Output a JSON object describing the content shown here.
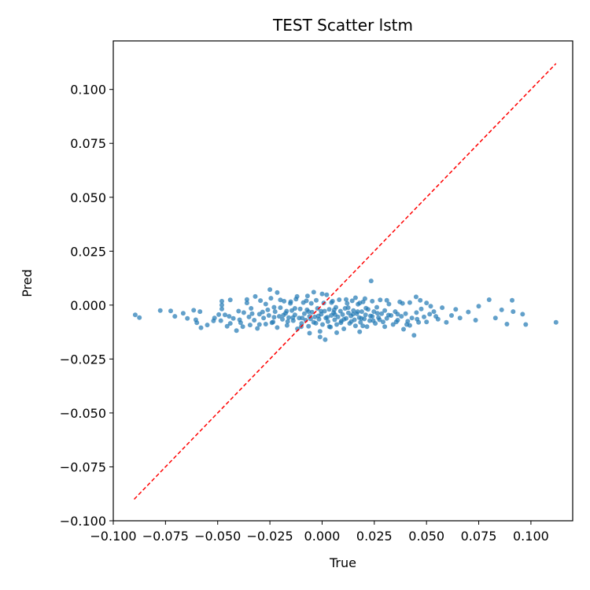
{
  "chart_data": {
    "type": "scatter",
    "title": "TEST Scatter lstm",
    "xlabel": "True",
    "ylabel": "Pred",
    "xlim": [
      -0.1,
      0.12
    ],
    "ylim": [
      -0.1,
      0.1225
    ],
    "xticks": [
      -0.1,
      -0.075,
      -0.05,
      -0.025,
      0.0,
      0.025,
      0.05,
      0.075,
      0.1
    ],
    "xtick_labels": [
      "−0.100",
      "−0.075",
      "−0.050",
      "−0.025",
      "0.000",
      "0.025",
      "0.050",
      "0.075",
      "0.100"
    ],
    "yticks": [
      -0.1,
      -0.075,
      -0.05,
      -0.025,
      0.0,
      0.025,
      0.05,
      0.075,
      0.1
    ],
    "ytick_labels": [
      "−0.100",
      "−0.075",
      "−0.050",
      "−0.025",
      "0.000",
      "0.025",
      "0.050",
      "0.075",
      "0.100"
    ],
    "grid": false,
    "legend": "none",
    "colors": {
      "points": "#1f77b4",
      "reference_line": "#ff0000"
    },
    "reference_line": {
      "x": [
        -0.09,
        0.112
      ],
      "y": [
        -0.09,
        0.112
      ],
      "style": "dashed"
    },
    "series": [
      {
        "points": [
          [
            -0.0895,
            -0.0045
          ],
          [
            -0.0875,
            -0.0058
          ],
          [
            -0.0775,
            -0.0025
          ],
          [
            -0.0725,
            -0.0027
          ],
          [
            -0.0705,
            -0.0052
          ],
          [
            -0.0665,
            -0.0038
          ],
          [
            -0.0645,
            -0.0062
          ],
          [
            -0.0615,
            -0.0024
          ],
          [
            -0.06,
            -0.0082
          ],
          [
            -0.0585,
            -0.003
          ],
          [
            -0.055,
            -0.0092
          ],
          [
            -0.052,
            -0.0073
          ],
          [
            -0.0495,
            -0.0044
          ],
          [
            -0.0485,
            -0.0072
          ],
          [
            -0.048,
            -0.0018
          ],
          [
            -0.048,
            0.0018
          ],
          [
            -0.0455,
            -0.0098
          ],
          [
            -0.0445,
            -0.0052
          ],
          [
            -0.044,
            0.0024
          ],
          [
            -0.0425,
            -0.0062
          ],
          [
            -0.041,
            -0.0118
          ],
          [
            -0.04,
            -0.0028
          ],
          [
            -0.039,
            -0.0082
          ],
          [
            -0.0375,
            -0.0035
          ],
          [
            -0.036,
            0.0026
          ],
          [
            -0.035,
            -0.0055
          ],
          [
            -0.0345,
            -0.0092
          ],
          [
            -0.034,
            -0.0015
          ],
          [
            -0.0325,
            -0.007
          ],
          [
            -0.031,
            -0.0108
          ],
          [
            -0.03,
            -0.0042
          ],
          [
            -0.0295,
            0.0021
          ],
          [
            -0.028,
            -0.006
          ],
          [
            -0.027,
            -0.0088
          ],
          [
            -0.026,
            -0.0022
          ],
          [
            -0.0255,
            -0.0048
          ],
          [
            -0.0245,
            0.0032
          ],
          [
            -0.0235,
            -0.0078
          ],
          [
            -0.0225,
            -0.003
          ],
          [
            -0.0215,
            -0.0104
          ],
          [
            -0.0205,
            -0.0052
          ],
          [
            -0.02,
            -0.0012
          ],
          [
            -0.019,
            -0.0066
          ],
          [
            -0.0182,
            0.0018
          ],
          [
            -0.0175,
            -0.0038
          ],
          [
            -0.0168,
            -0.0094
          ],
          [
            -0.016,
            -0.0058
          ],
          [
            -0.0152,
            0.0008
          ],
          [
            -0.0145,
            -0.0025
          ],
          [
            -0.0138,
            -0.0072
          ],
          [
            -0.013,
            -0.0045
          ],
          [
            -0.0125,
            0.0028
          ],
          [
            -0.0118,
            -0.011
          ],
          [
            -0.011,
            -0.006
          ],
          [
            -0.0105,
            -0.0018
          ],
          [
            -0.0098,
            -0.0085
          ],
          [
            -0.009,
            0.0012
          ],
          [
            -0.0085,
            -0.004
          ],
          [
            -0.0078,
            -0.007
          ],
          [
            -0.0072,
            -0.0022
          ],
          [
            -0.0065,
            -0.0098
          ],
          [
            -0.006,
            -0.0052
          ],
          [
            -0.0052,
            0.0008
          ],
          [
            -0.0048,
            -0.0033
          ],
          [
            -0.004,
            -0.008
          ],
          [
            -0.0035,
            -0.0055
          ],
          [
            -0.0028,
            0.0022
          ],
          [
            -0.0022,
            -0.0015
          ],
          [
            -0.0015,
            -0.0065
          ],
          [
            -0.001,
            -0.0122
          ],
          [
            -0.0004,
            -0.0042
          ],
          [
            0.0002,
            -0.009
          ],
          [
            0.0008,
            0.001
          ],
          [
            0.0012,
            -0.0028
          ],
          [
            0.0018,
            -0.006
          ],
          [
            0.0022,
            0.0048
          ],
          [
            0.0028,
            -0.0076
          ],
          [
            0.0034,
            -0.002
          ],
          [
            0.004,
            -0.0102
          ],
          [
            0.0044,
            -0.0048
          ],
          [
            0.005,
            0.0018
          ],
          [
            0.0055,
            -0.0035
          ],
          [
            0.006,
            -0.0068
          ],
          [
            0.0066,
            -0.001
          ],
          [
            0.007,
            -0.009
          ],
          [
            0.0076,
            -0.0055
          ],
          [
            0.0082,
            0.0025
          ],
          [
            0.0088,
            -0.0028
          ],
          [
            0.0092,
            -0.0074
          ],
          [
            0.0098,
            -0.0044
          ],
          [
            0.0104,
            -0.011
          ],
          [
            0.011,
            -0.0015
          ],
          [
            0.0115,
            -0.0062
          ],
          [
            0.012,
            0.0008
          ],
          [
            0.0126,
            -0.0036
          ],
          [
            0.0132,
            -0.0085
          ],
          [
            0.0138,
            -0.005
          ],
          [
            0.0144,
            0.002
          ],
          [
            0.015,
            -0.0025
          ],
          [
            0.0155,
            -0.0068
          ],
          [
            0.016,
            -0.0096
          ],
          [
            0.0166,
            -0.004
          ],
          [
            0.0172,
            0.0004
          ],
          [
            0.0178,
            -0.0058
          ],
          [
            0.0184,
            -0.008
          ],
          [
            0.019,
            -0.003
          ],
          [
            0.0196,
            0.0015
          ],
          [
            0.0202,
            -0.0064
          ],
          [
            0.0208,
            -0.0045
          ],
          [
            0.0215,
            -0.01
          ],
          [
            0.022,
            -0.002
          ],
          [
            0.0228,
            -0.0072
          ],
          [
            0.0235,
            0.0112
          ],
          [
            0.024,
            -0.0052
          ],
          [
            0.0248,
            -0.003
          ],
          [
            0.0255,
            -0.0085
          ],
          [
            0.0262,
            -0.001
          ],
          [
            0.027,
            -0.0058
          ],
          [
            0.0278,
            0.0024
          ],
          [
            0.0285,
            -0.004
          ],
          [
            0.0292,
            -0.0078
          ],
          [
            0.03,
            -0.0025
          ],
          [
            0.031,
            -0.0062
          ],
          [
            0.032,
            0.0005
          ],
          [
            0.033,
            -0.0048
          ],
          [
            0.034,
            -0.009
          ],
          [
            0.035,
            -0.003
          ],
          [
            0.0362,
            -0.007
          ],
          [
            0.0372,
            0.0015
          ],
          [
            0.038,
            -0.0052
          ],
          [
            0.039,
            -0.0112
          ],
          [
            0.04,
            -0.004
          ],
          [
            0.041,
            -0.0075
          ],
          [
            0.042,
            0.0012
          ],
          [
            0.043,
            -0.006
          ],
          [
            0.044,
            -0.014
          ],
          [
            0.0452,
            -0.0035
          ],
          [
            0.0462,
            -0.008
          ],
          [
            0.0475,
            -0.0018
          ],
          [
            0.0488,
            -0.0055
          ],
          [
            0.05,
            0.001
          ],
          [
            0.0515,
            -0.0042
          ],
          [
            0.0535,
            -0.003
          ],
          [
            0.0555,
            -0.0065
          ],
          [
            0.0575,
            -0.0012
          ],
          [
            0.0595,
            -0.008
          ],
          [
            0.062,
            -0.0048
          ],
          [
            0.064,
            -0.002
          ],
          [
            0.066,
            -0.006
          ],
          [
            0.07,
            -0.0032
          ],
          [
            0.0735,
            -0.007
          ],
          [
            0.075,
            -0.0005
          ],
          [
            0.08,
            0.0025
          ],
          [
            0.083,
            -0.006
          ],
          [
            0.086,
            -0.0022
          ],
          [
            0.0885,
            -0.0088
          ],
          [
            0.091,
            0.0022
          ],
          [
            0.0915,
            -0.003
          ],
          [
            0.096,
            -0.0042
          ],
          [
            0.0975,
            -0.009
          ],
          [
            0.112,
            -0.008
          ],
          [
            -0.032,
            0.004
          ],
          [
            -0.0215,
            0.0058
          ],
          [
            -0.025,
            0.0072
          ],
          [
            -0.012,
            0.004
          ],
          [
            -0.007,
            0.0042
          ],
          [
            -0.004,
            0.006
          ],
          [
            0.0,
            0.0052
          ],
          [
            0.016,
            0.0034
          ],
          [
            0.0205,
            0.003
          ],
          [
            0.045,
            0.0038
          ],
          [
            -0.058,
            -0.0105
          ],
          [
            -0.0515,
            -0.006
          ],
          [
            -0.0465,
            -0.0045
          ],
          [
            -0.0395,
            -0.0068
          ],
          [
            -0.0335,
            -0.004
          ],
          [
            -0.0285,
            -0.0032
          ],
          [
            -0.023,
            -0.0056
          ],
          [
            -0.0185,
            -0.0046
          ],
          [
            -0.014,
            -0.0058
          ],
          [
            -0.0095,
            -0.006
          ],
          [
            -0.0055,
            -0.0064
          ],
          [
            -0.0018,
            -0.005
          ],
          [
            0.0025,
            -0.0056
          ],
          [
            0.0062,
            -0.0044
          ],
          [
            0.0105,
            -0.0066
          ],
          [
            0.0148,
            -0.0042
          ],
          [
            0.0188,
            -0.0062
          ],
          [
            0.0232,
            -0.005
          ],
          [
            0.0275,
            -0.0068
          ],
          [
            0.0318,
            -0.0046
          ],
          [
            0.0362,
            -0.0042
          ],
          [
            0.0405,
            -0.009
          ],
          [
            0.0455,
            -0.0065
          ],
          [
            0.05,
            -0.0078
          ],
          [
            0.0545,
            -0.0052
          ],
          [
            -0.044,
            -0.0085
          ],
          [
            -0.038,
            -0.01
          ],
          [
            -0.03,
            -0.009
          ],
          [
            -0.024,
            -0.0082
          ],
          [
            -0.0165,
            -0.0076
          ],
          [
            -0.01,
            -0.01
          ],
          [
            -0.003,
            -0.0084
          ],
          [
            0.0035,
            -0.01
          ],
          [
            0.009,
            -0.0082
          ],
          [
            0.014,
            -0.0076
          ],
          [
            0.0195,
            -0.0096
          ],
          [
            0.0245,
            -0.0072
          ],
          [
            0.03,
            -0.01
          ],
          [
            0.0355,
            -0.0078
          ],
          [
            0.042,
            -0.0094
          ],
          [
            -0.0605,
            -0.0068
          ],
          [
            -0.048,
            0.0
          ],
          [
            -0.036,
            0.001
          ],
          [
            -0.027,
            0.0005
          ],
          [
            -0.02,
            0.0024
          ],
          [
            -0.015,
            0.0016
          ],
          [
            -0.0075,
            0.002
          ],
          [
            0.0045,
            0.0012
          ],
          [
            0.0115,
            0.0026
          ],
          [
            0.018,
            0.001
          ],
          [
            0.024,
            0.0018
          ],
          [
            0.031,
            0.0022
          ],
          [
            0.0385,
            0.0008
          ],
          [
            0.047,
            0.0022
          ],
          [
            0.052,
            -0.0005
          ],
          [
            -0.013,
            -0.0015
          ],
          [
            -0.0065,
            -0.003
          ],
          [
            -0.0005,
            -0.0028
          ],
          [
            0.0058,
            -0.0022
          ],
          [
            0.0125,
            -0.0012
          ],
          [
            0.017,
            -0.003
          ],
          [
            0.021,
            -0.0014
          ],
          [
            0.0265,
            -0.0038
          ],
          [
            -0.017,
            -0.0028
          ],
          [
            -0.023,
            -0.001
          ],
          [
            0.0015,
            -0.016
          ],
          [
            -0.001,
            -0.0148
          ],
          [
            0.007,
            -0.0128
          ],
          [
            -0.006,
            -0.013
          ],
          [
            0.018,
            -0.0124
          ]
        ]
      }
    ]
  }
}
